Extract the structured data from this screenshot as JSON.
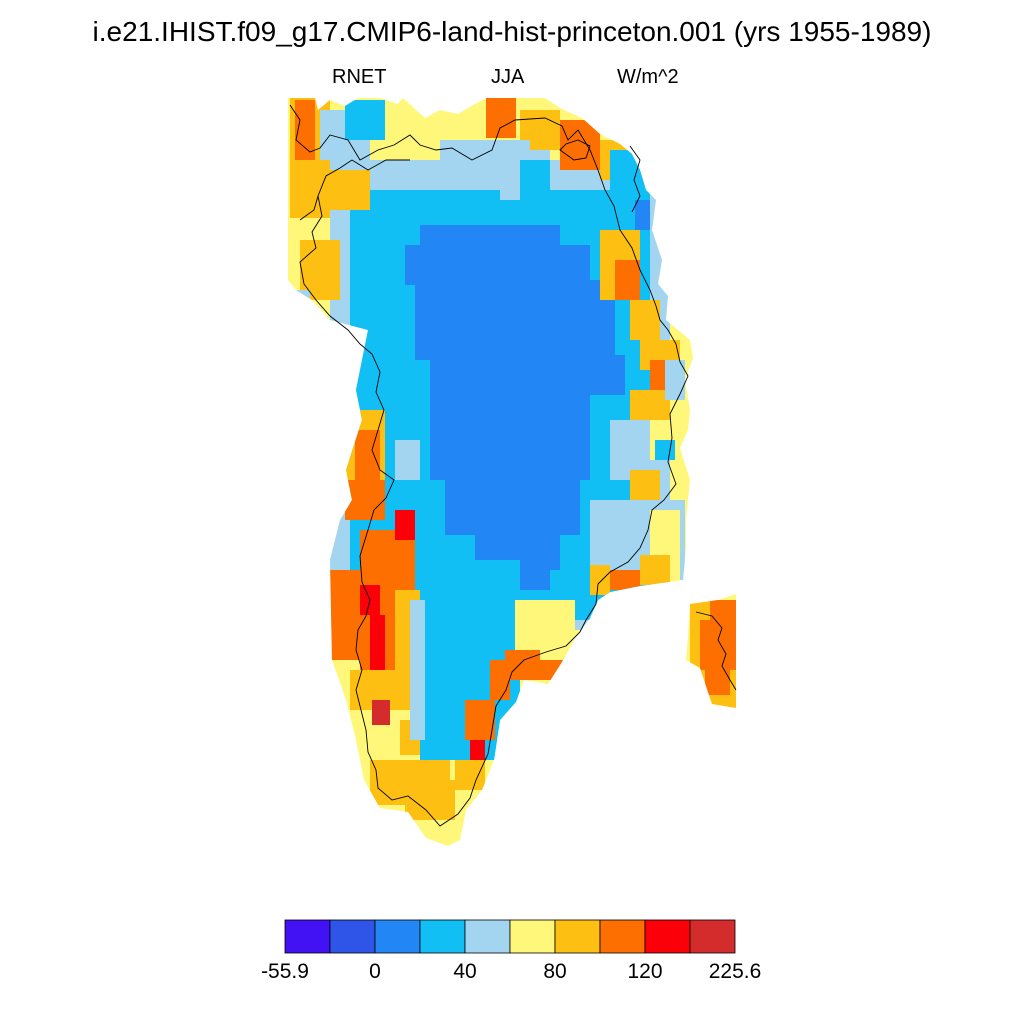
{
  "title": "i.e21.IHIST.f09_g17.CMIP6-land-hist-princeton.001 (yrs 1955-1989)",
  "subtitle": {
    "left": "RNET",
    "center": "JJA",
    "right": "W/m^2"
  },
  "colorbar": {
    "colors": [
      "#4212f5",
      "#2f55e8",
      "#2286f5",
      "#12bff5",
      "#a3d5f0",
      "#fff77a",
      "#fdbf11",
      "#fe6f02",
      "#fb0009",
      "#d42c2c"
    ],
    "labels": [
      {
        "text": "-55.9",
        "boundary": 0
      },
      {
        "text": "0",
        "boundary": 2
      },
      {
        "text": "40",
        "boundary": 4
      },
      {
        "text": "80",
        "boundary": 6
      },
      {
        "text": "120",
        "boundary": 8
      },
      {
        "text": "225.6",
        "boundary": 10
      }
    ]
  }
}
